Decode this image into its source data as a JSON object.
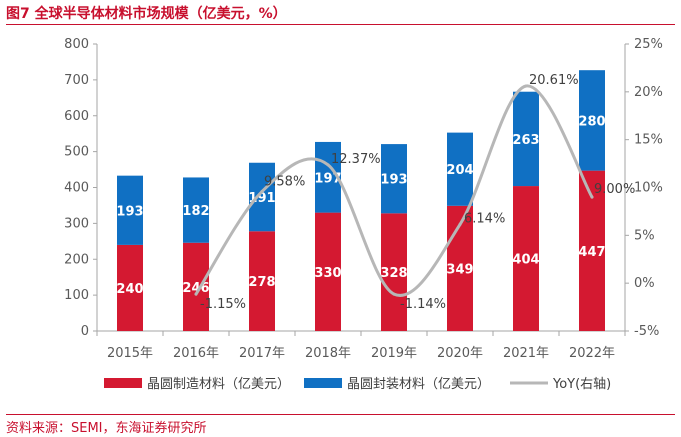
{
  "title": "图7  全球半导体材料市场规模（亿美元，%）",
  "source": "资料来源：SEMI，东海证券研究所",
  "colors": {
    "manufacturing": "#d41931",
    "packaging": "#1070c3",
    "yoy": "#b7b7b7",
    "accent": "#c8102e"
  },
  "chart_data": {
    "type": "bar",
    "stacked": true,
    "categories": [
      "2015年",
      "2016年",
      "2017年",
      "2018年",
      "2019年",
      "2020年",
      "2021年",
      "2022年"
    ],
    "series": [
      {
        "name": "晶圆制造材料（亿美元）",
        "values": [
          240,
          246,
          278,
          330,
          328,
          349,
          404,
          447
        ],
        "labels": [
          "240",
          "246",
          "278",
          "330",
          "328",
          "349",
          "404",
          "447"
        ]
      },
      {
        "name": "晶圆封装材料（亿美元）",
        "values": [
          193,
          182,
          191,
          197,
          193,
          204,
          263,
          280
        ],
        "labels": [
          "193",
          "182",
          "191",
          "197",
          "193",
          "204",
          "263",
          "280"
        ]
      },
      {
        "name": "YoY(右轴)",
        "type": "line",
        "axis": "right",
        "values": [
          null,
          -1.15,
          9.58,
          12.37,
          -1.14,
          6.14,
          20.61,
          9.0
        ],
        "labels": [
          "",
          "-1.15%",
          "9.58%",
          "12.37%",
          "-1.14%",
          "6.14%",
          "20.61%",
          "9.00%"
        ]
      }
    ],
    "ylim": [
      0,
      800
    ],
    "yticks": [
      "0",
      "100",
      "200",
      "300",
      "400",
      "500",
      "600",
      "700",
      "800"
    ],
    "y2lim": [
      -5,
      25
    ],
    "y2ticks": [
      "-5%",
      "0%",
      "5%",
      "10%",
      "15%",
      "20%",
      "25%"
    ],
    "legend": "bottom",
    "grid": false
  }
}
